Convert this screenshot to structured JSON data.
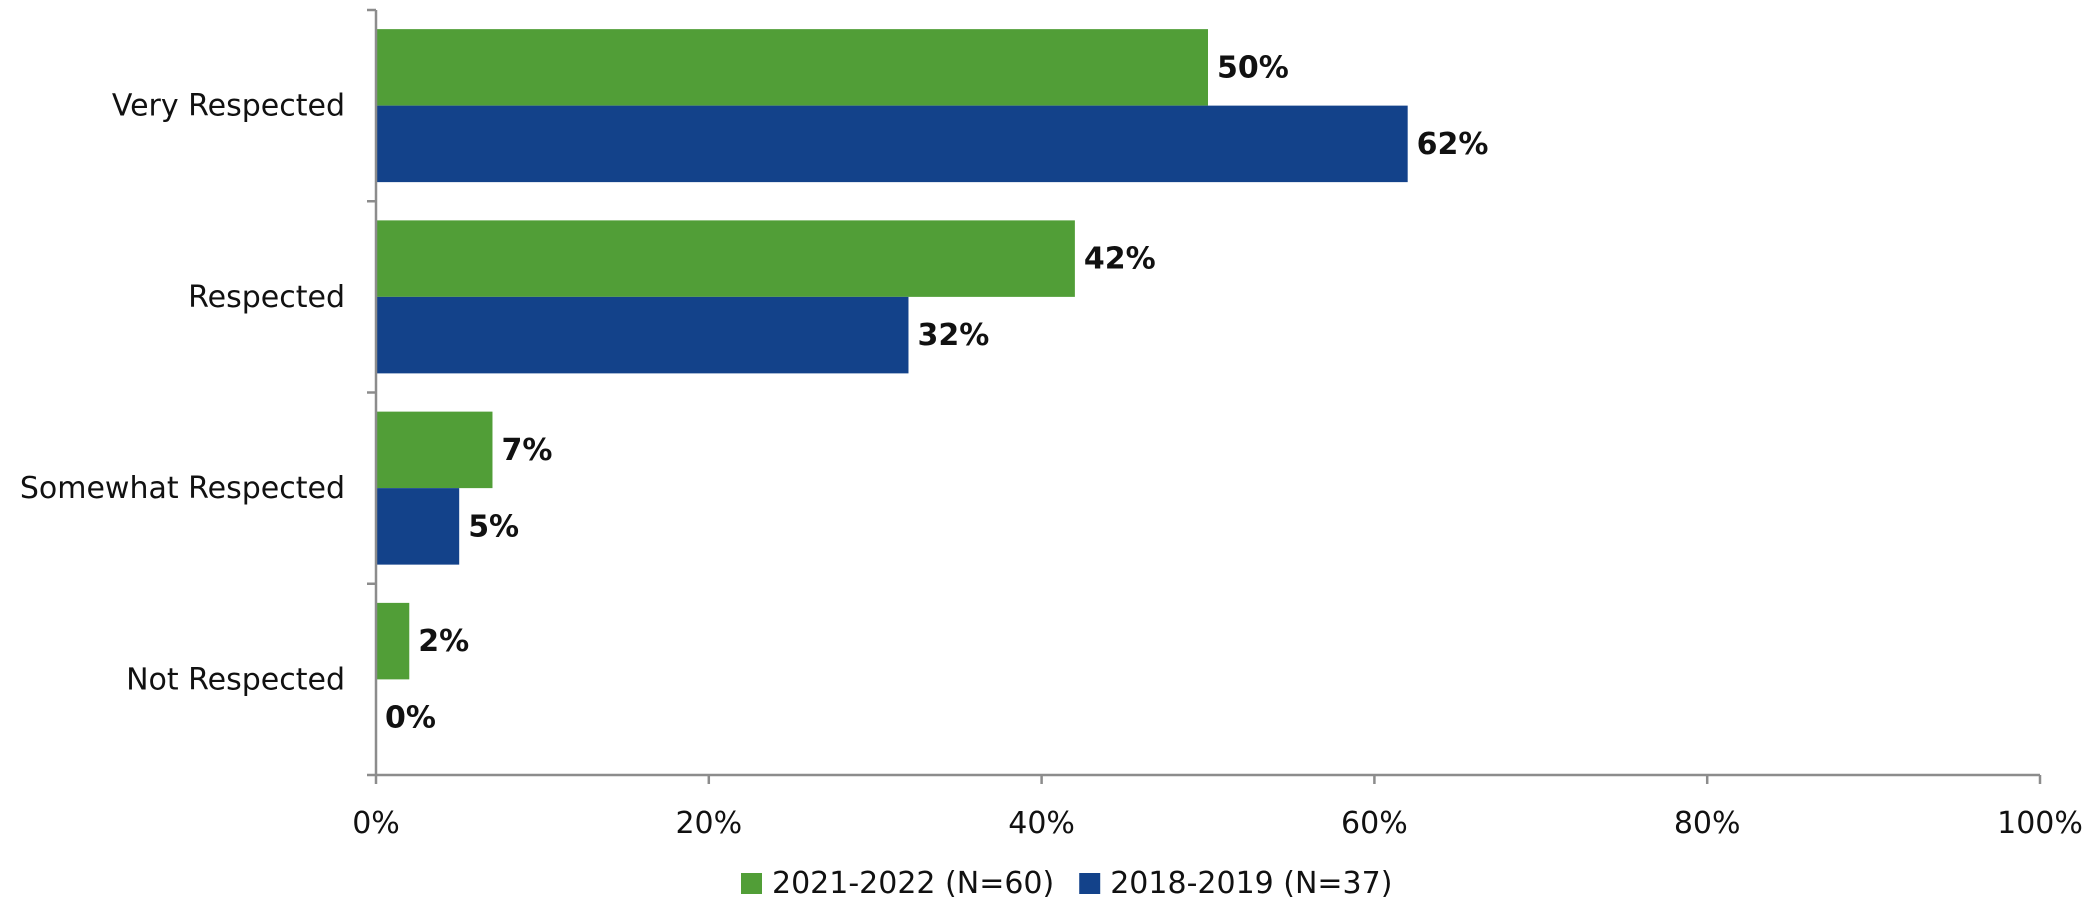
{
  "chart_data": {
    "type": "bar",
    "orientation": "horizontal",
    "categories": [
      "Very Respected",
      "Respected",
      "Somewhat Respected",
      "Not Respected"
    ],
    "series": [
      {
        "name": "2021-2022 (N=60)",
        "color": "#519e37",
        "values": [
          50,
          42,
          7,
          2
        ],
        "labels": [
          "50%",
          "42%",
          "7%",
          "2%"
        ]
      },
      {
        "name": "2018-2019 (N=37)",
        "color": "#13428a",
        "values": [
          62,
          32,
          5,
          0
        ],
        "labels": [
          "62%",
          "32%",
          "5%",
          "0%"
        ]
      }
    ],
    "xlim": [
      0,
      100
    ],
    "xticks": [
      0,
      20,
      40,
      60,
      80,
      100
    ],
    "xtick_labels": [
      "0%",
      "20%",
      "40%",
      "60%",
      "80%",
      "100%"
    ],
    "grid": false,
    "legend_position": "bottom",
    "title": "",
    "xlabel": "",
    "ylabel": ""
  }
}
